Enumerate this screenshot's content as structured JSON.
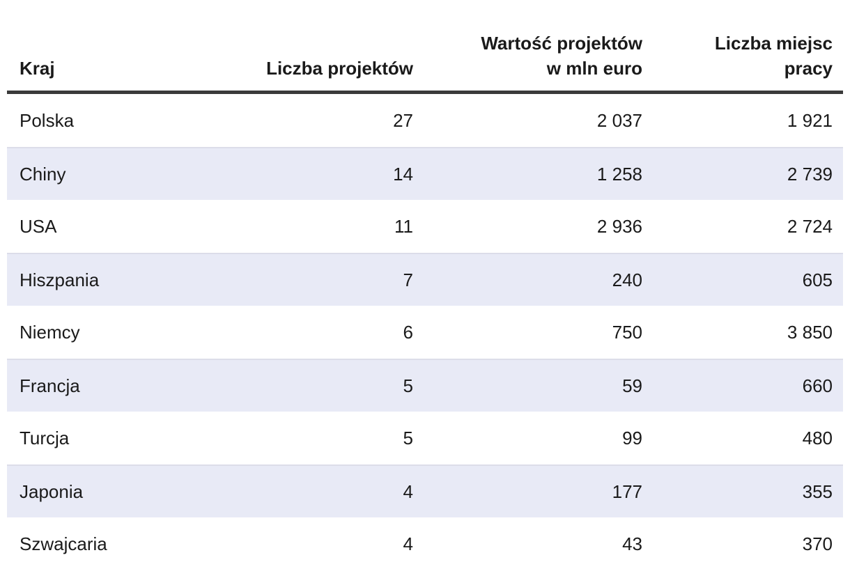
{
  "table": {
    "columns": [
      {
        "lines": [
          "Kraj"
        ]
      },
      {
        "lines": [
          "Liczba projektów"
        ]
      },
      {
        "lines": [
          "Wartość projektów",
          "w mln euro"
        ]
      },
      {
        "lines": [
          "Liczba miejsc",
          "pracy"
        ]
      }
    ],
    "rows": [
      {
        "kraj": "Polska",
        "liczba_projektow": "27",
        "wartosc_mln_euro": "2 037",
        "liczba_miejsc_pracy": "1 921"
      },
      {
        "kraj": "Chiny",
        "liczba_projektow": "14",
        "wartosc_mln_euro": "1 258",
        "liczba_miejsc_pracy": "2 739"
      },
      {
        "kraj": "USA",
        "liczba_projektow": "11",
        "wartosc_mln_euro": "2 936",
        "liczba_miejsc_pracy": "2 724"
      },
      {
        "kraj": "Hiszpania",
        "liczba_projektow": "7",
        "wartosc_mln_euro": "240",
        "liczba_miejsc_pracy": "605"
      },
      {
        "kraj": "Niemcy",
        "liczba_projektow": "6",
        "wartosc_mln_euro": "750",
        "liczba_miejsc_pracy": "3 850"
      },
      {
        "kraj": "Francja",
        "liczba_projektow": "5",
        "wartosc_mln_euro": "59",
        "liczba_miejsc_pracy": "660"
      },
      {
        "kraj": "Turcja",
        "liczba_projektow": "5",
        "wartosc_mln_euro": "99",
        "liczba_miejsc_pracy": "480"
      },
      {
        "kraj": "Japonia",
        "liczba_projektow": "4",
        "wartosc_mln_euro": "177",
        "liczba_miejsc_pracy": "355"
      },
      {
        "kraj": "Szwajcaria",
        "liczba_projektow": "4",
        "wartosc_mln_euro": "43",
        "liczba_miejsc_pracy": "370"
      }
    ]
  },
  "colors": {
    "row_shade": "#e8eaf6",
    "row_shade_border": "#dcdde9",
    "header_rule": "#3a3a3a",
    "text": "#1a1a1a",
    "background": "#ffffff"
  },
  "chart_data": {
    "type": "table",
    "title": "",
    "columns": [
      "Kraj",
      "Liczba projektów",
      "Wartość projektów w mln euro",
      "Liczba miejsc pracy"
    ],
    "rows": [
      [
        "Polska",
        27,
        2037,
        1921
      ],
      [
        "Chiny",
        14,
        1258,
        2739
      ],
      [
        "USA",
        11,
        2936,
        2724
      ],
      [
        "Hiszpania",
        7,
        240,
        605
      ],
      [
        "Niemcy",
        6,
        750,
        3850
      ],
      [
        "Francja",
        5,
        59,
        660
      ],
      [
        "Turcja",
        5,
        99,
        480
      ],
      [
        "Japonia",
        4,
        177,
        355
      ],
      [
        "Szwajcaria",
        4,
        43,
        370
      ]
    ],
    "series": [
      {
        "name": "Liczba projektów",
        "values": [
          27,
          14,
          11,
          7,
          6,
          5,
          5,
          4,
          4
        ]
      },
      {
        "name": "Wartość projektów w mln euro",
        "values": [
          2037,
          1258,
          2936,
          240,
          750,
          59,
          99,
          177,
          43
        ]
      },
      {
        "name": "Liczba miejsc pracy",
        "values": [
          1921,
          2739,
          2724,
          605,
          3850,
          660,
          480,
          355,
          370
        ]
      }
    ],
    "categories": [
      "Polska",
      "Chiny",
      "USA",
      "Hiszpania",
      "Niemcy",
      "Francja",
      "Turcja",
      "Japonia",
      "Szwajcaria"
    ]
  }
}
